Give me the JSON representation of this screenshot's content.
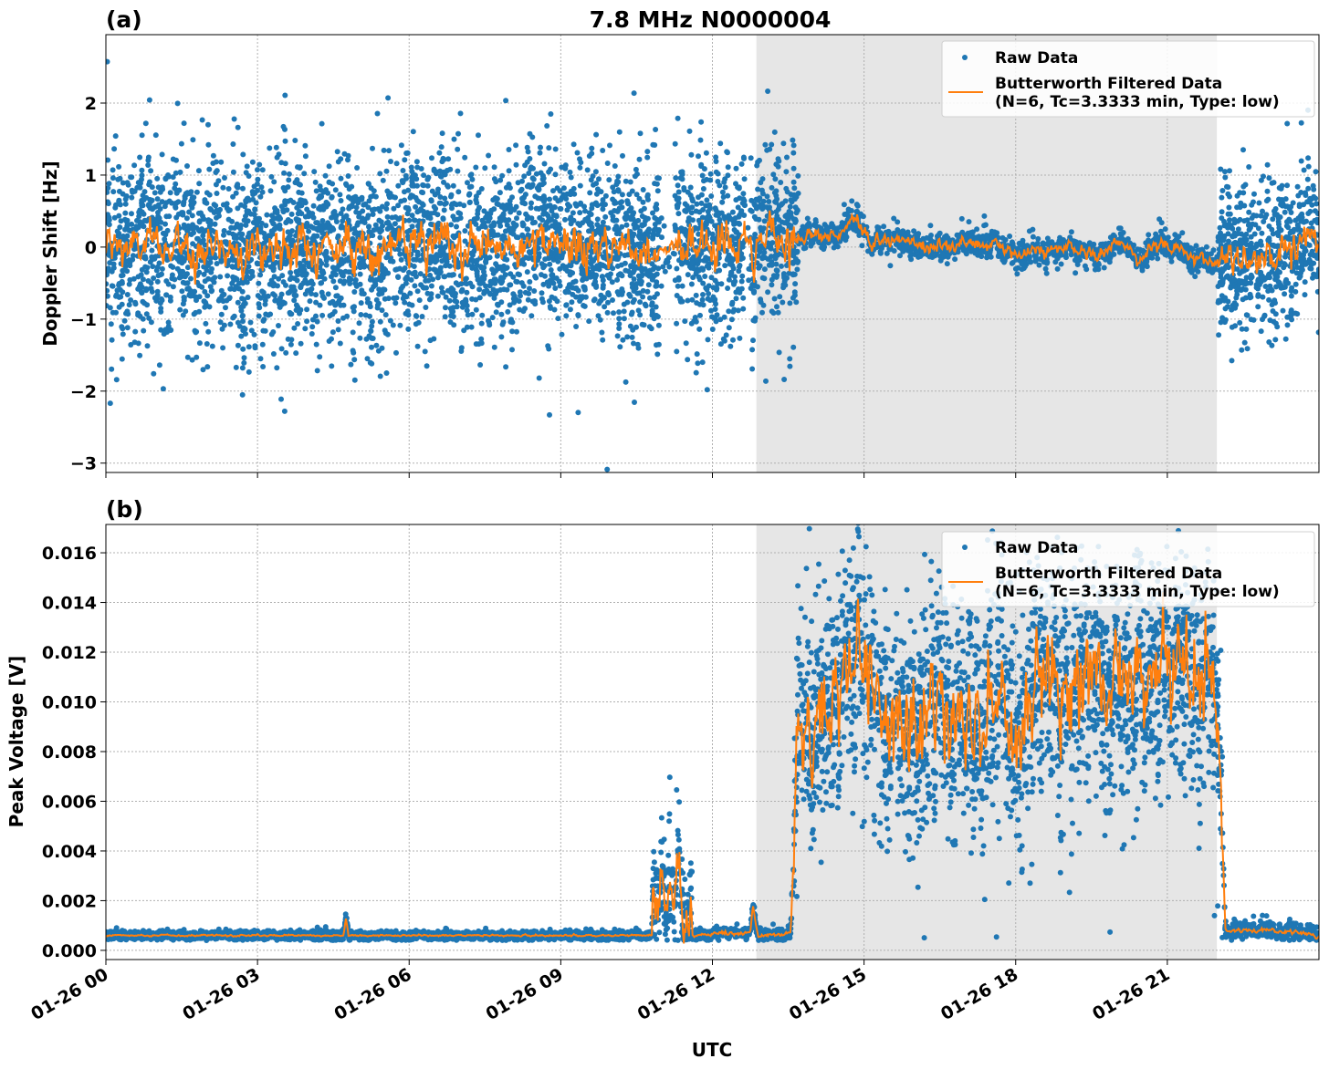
{
  "figure": {
    "title": "7.8 MHz N0000004",
    "xlabel": "UTC",
    "colors": {
      "raw": "#1f77b4",
      "filtered": "#ff7f0e",
      "shade": "#e6e6e6"
    }
  },
  "chart_data": [
    {
      "type": "scatter",
      "panel_label": "(a)",
      "title": "7.8 MHz N0000004",
      "xlabel": "",
      "ylabel": "Doppler Shift [Hz]",
      "xlim_hours": [
        0,
        24
      ],
      "ylim": [
        -3.13,
        2.95
      ],
      "yticks": [
        2,
        1,
        0,
        -1,
        -2,
        -3
      ],
      "ytick_labels": [
        "2",
        "1",
        "0",
        "−1",
        "−2",
        "−3"
      ],
      "xticks_hours": [
        0,
        3,
        6,
        9,
        12,
        15,
        18,
        21
      ],
      "xtick_labels": [
        "01-26 00",
        "01-26 03",
        "01-26 06",
        "01-26 09",
        "01-26 12",
        "01-26 15",
        "01-26 18",
        "01-26 21"
      ],
      "show_xtick_labels": false,
      "grid": true,
      "shaded_region_hours": [
        12.87,
        21.98
      ],
      "legend": {
        "placement": "top-right",
        "raw_label": "Raw Data",
        "filtered_label_line1": "Butterworth Filtered Data",
        "filtered_label_line2": "(N=6, Tc=3.3333 min, Type: low)"
      },
      "trend": [
        [
          0,
          0
        ],
        [
          10.95,
          0
        ],
        [
          13.7,
          0.1
        ],
        [
          14.0,
          0.25
        ],
        [
          14.4,
          0.1
        ],
        [
          14.8,
          0.45
        ],
        [
          15.1,
          0.05
        ],
        [
          15.6,
          0.1
        ],
        [
          16.5,
          0.0
        ],
        [
          17.5,
          0.05
        ],
        [
          18.2,
          -0.1
        ],
        [
          19,
          0.0
        ],
        [
          19.6,
          -0.15
        ],
        [
          20.0,
          0.1
        ],
        [
          20.4,
          -0.15
        ],
        [
          20.8,
          0.05
        ],
        [
          21.3,
          -0.05
        ],
        [
          21.7,
          -0.2
        ],
        [
          22.0,
          -0.25
        ],
        [
          22.5,
          -0.15
        ],
        [
          23.5,
          0.05
        ],
        [
          24,
          0.2
        ]
      ],
      "segments": [
        {
          "t": [
            0,
            10.95
          ],
          "spread": 0.6,
          "filt_noise": 0.18,
          "density": 1
        },
        {
          "t": [
            10.95,
            11.25
          ],
          "spread": 0.3,
          "filt_noise": 0.08,
          "density": 0.15
        },
        {
          "t": [
            11.25,
            12.65
          ],
          "spread": 0.6,
          "filt_noise": 0.18,
          "density": 1
        },
        {
          "t": [
            12.65,
            12.75
          ],
          "spread": 0.3,
          "filt_noise": 0.05,
          "density": 0.1
        },
        {
          "t": [
            12.75,
            13.7
          ],
          "spread": 0.6,
          "filt_noise": 0.2,
          "density": 1
        },
        {
          "t": [
            13.7,
            22.0
          ],
          "spread": 0.08,
          "filt_noise": 0.06,
          "density": 0.6
        },
        {
          "t": [
            22.0,
            24
          ],
          "spread": 0.5,
          "filt_noise": 0.15,
          "density": 1
        }
      ],
      "floor": null
    },
    {
      "type": "scatter",
      "panel_label": "(b)",
      "title": "",
      "xlabel": "UTC",
      "ylabel": "Peak Voltage [V]",
      "xlim_hours": [
        0,
        24
      ],
      "ylim": [
        -0.00037,
        0.01714
      ],
      "yticks": [
        0.016,
        0.014,
        0.012,
        0.01,
        0.008,
        0.006,
        0.004,
        0.002,
        0.0
      ],
      "ytick_labels": [
        "0.016",
        "0.014",
        "0.012",
        "0.010",
        "0.008",
        "0.006",
        "0.004",
        "0.002",
        "0.000"
      ],
      "xticks_hours": [
        0,
        3,
        6,
        9,
        12,
        15,
        18,
        21
      ],
      "xtick_labels": [
        "01-26 00",
        "01-26 03",
        "01-26 06",
        "01-26 09",
        "01-26 12",
        "01-26 15",
        "01-26 18",
        "01-26 21"
      ],
      "show_xtick_labels": true,
      "grid": true,
      "shaded_region_hours": [
        12.87,
        21.98
      ],
      "legend": {
        "placement": "top-right",
        "raw_label": "Raw Data",
        "filtered_label_line1": "Butterworth Filtered Data",
        "filtered_label_line2": "(N=6, Tc=3.3333 min, Type: low)"
      },
      "trend": [
        [
          0,
          0.0006
        ],
        [
          4.7,
          0.0006
        ],
        [
          4.75,
          0.0013
        ],
        [
          4.8,
          0.0006
        ],
        [
          10.8,
          0.0006
        ],
        [
          10.9,
          0.003
        ],
        [
          11.1,
          0.002
        ],
        [
          11.3,
          0.0035
        ],
        [
          11.5,
          0.0012
        ],
        [
          11.6,
          0.0006
        ],
        [
          12.75,
          0.0007
        ],
        [
          12.8,
          0.0018
        ],
        [
          12.9,
          0.0006
        ],
        [
          13.55,
          0.0007
        ],
        [
          13.7,
          0.009
        ],
        [
          14.2,
          0.0095
        ],
        [
          14.8,
          0.0125
        ],
        [
          15.2,
          0.0095
        ],
        [
          17,
          0.0092
        ],
        [
          18,
          0.009
        ],
        [
          18.5,
          0.011
        ],
        [
          21.5,
          0.0115
        ],
        [
          21.9,
          0.0115
        ],
        [
          22.05,
          0.007
        ],
        [
          22.15,
          0.0008
        ],
        [
          23,
          0.0008
        ],
        [
          24,
          0.0006
        ]
      ],
      "segments": [
        {
          "t": [
            0,
            10.8
          ],
          "spread": 8e-05,
          "filt_noise": 2e-05,
          "density": 1
        },
        {
          "t": [
            10.8,
            11.6
          ],
          "spread": 0.0012,
          "filt_noise": 0.0008,
          "density": 0.8
        },
        {
          "t": [
            11.6,
            13.6
          ],
          "spread": 0.0001,
          "filt_noise": 5e-05,
          "density": 0.8
        },
        {
          "t": [
            13.6,
            22.1
          ],
          "spread": 0.0022,
          "filt_noise": 0.0012,
          "density": 1
        },
        {
          "t": [
            22.1,
            24
          ],
          "spread": 0.00015,
          "filt_noise": 5e-05,
          "density": 0.8
        }
      ],
      "floor": 0.0004
    }
  ]
}
